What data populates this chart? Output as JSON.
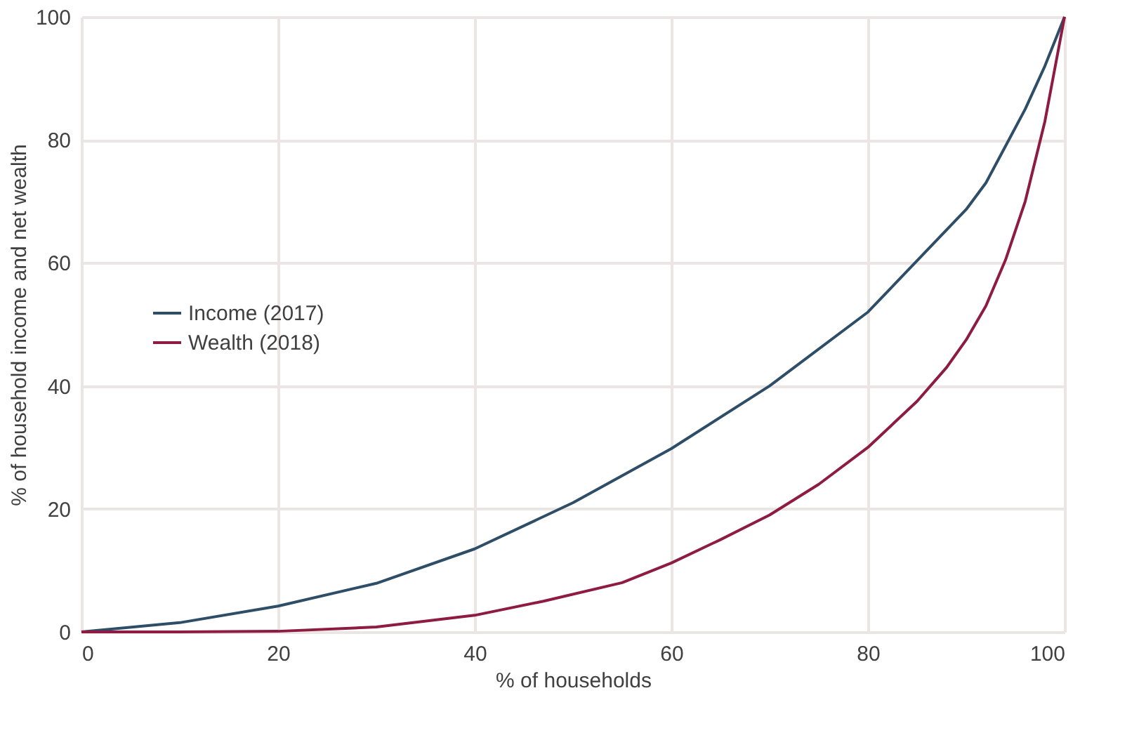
{
  "chart_data": {
    "type": "line",
    "xlabel": "% of households",
    "ylabel": "% of household income and net wealth",
    "xlim": [
      0,
      100
    ],
    "ylim": [
      0,
      100
    ],
    "xticks": [
      0,
      20,
      40,
      60,
      80,
      100
    ],
    "yticks": [
      0,
      20,
      40,
      60,
      80,
      100
    ],
    "grid": true,
    "legend": "left",
    "marker": "none",
    "line_style": "solid",
    "series": [
      {
        "name": "Income (2017)",
        "color": "#2e4e68",
        "x": [
          0,
          10,
          20,
          30,
          40,
          50,
          60,
          70,
          80,
          90,
          92,
          94,
          96,
          98,
          100
        ],
        "values": [
          0,
          1.5,
          4.2,
          7.9,
          13.5,
          21,
          29.8,
          40,
          52,
          68.7,
          73,
          79,
          85,
          92,
          100
        ]
      },
      {
        "name": "Wealth (2018)",
        "color": "#8e1b42",
        "x": [
          0,
          10,
          20,
          30,
          40,
          47,
          55,
          60,
          65,
          70,
          75,
          80,
          85,
          88,
          90,
          92,
          94,
          96,
          98,
          100
        ],
        "values": [
          0,
          0,
          0.1,
          0.8,
          2.7,
          5,
          8,
          11.2,
          15,
          19,
          24,
          30,
          37.5,
          43,
          47.5,
          53,
          60.5,
          70,
          83,
          100
        ]
      }
    ]
  }
}
